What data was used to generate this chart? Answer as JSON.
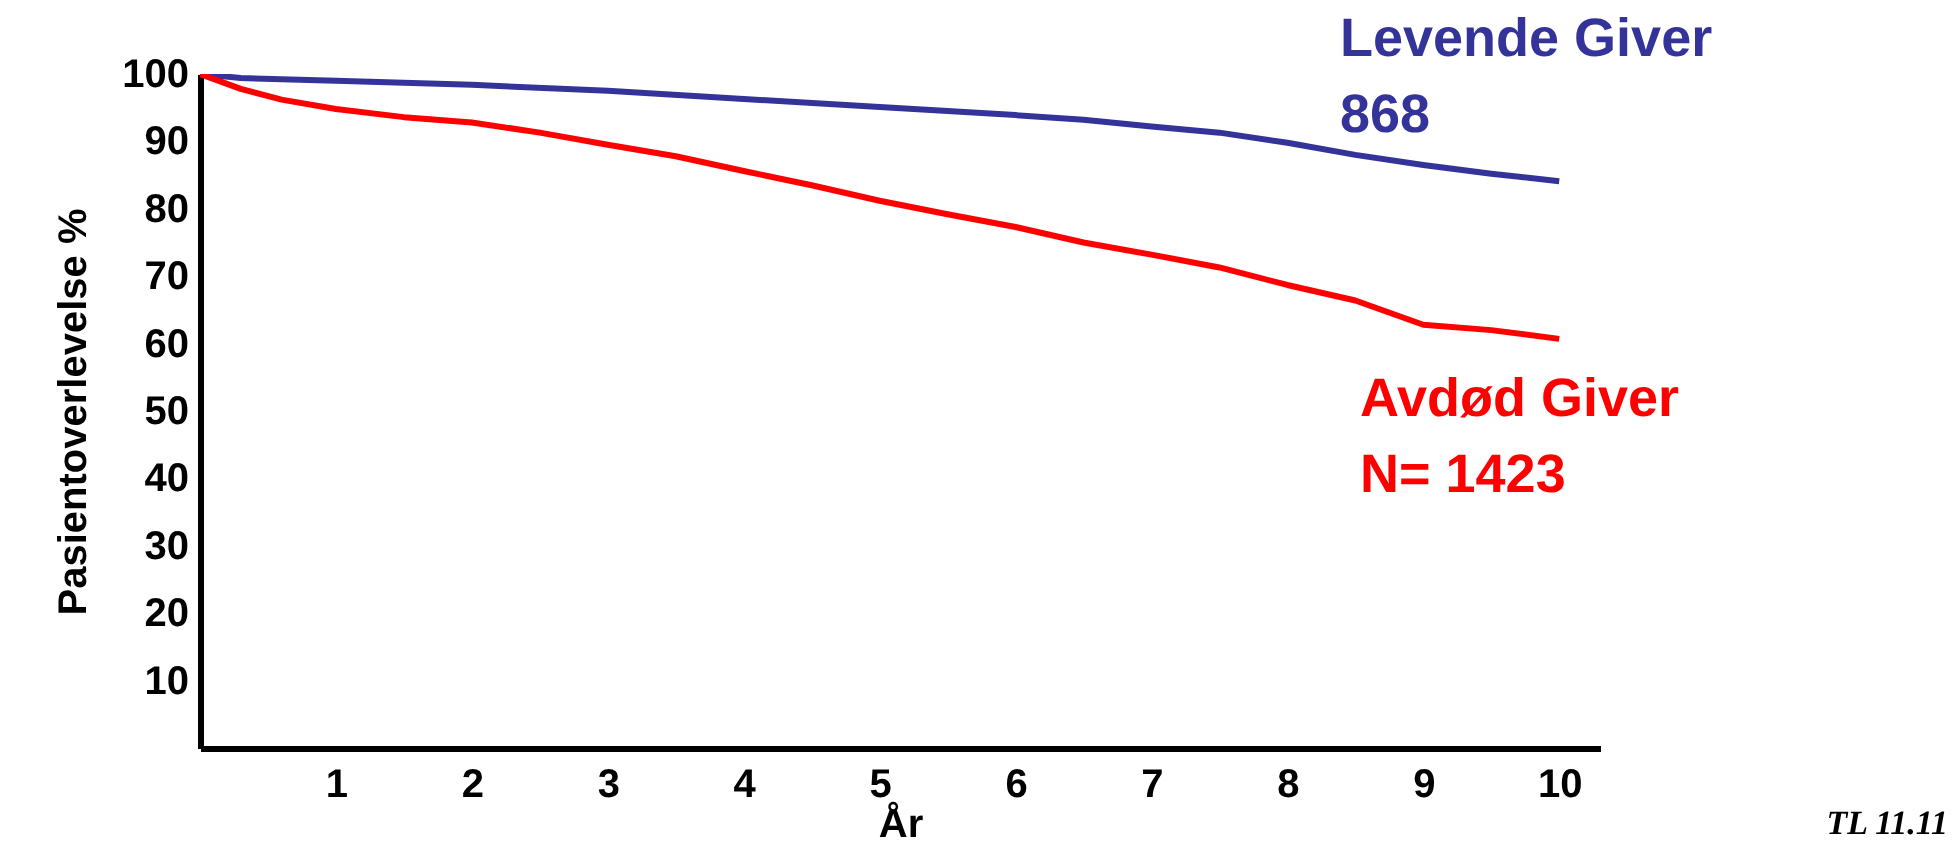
{
  "chart_data": {
    "type": "line",
    "xlabel": "År",
    "ylabel": "Pasientoverlevelse %",
    "xlim": [
      0,
      10.3
    ],
    "xticks": [
      1,
      2,
      3,
      4,
      5,
      6,
      7,
      8,
      9,
      10
    ],
    "ylim": [
      0,
      100
    ],
    "yticks": [
      10,
      20,
      30,
      40,
      50,
      60,
      70,
      80,
      90,
      100
    ],
    "grid": false,
    "legend": false,
    "marker": "none",
    "line_style": "solid",
    "annotations": [
      "TL 11.11"
    ],
    "series": [
      {
        "name": "Levende Giver\n868",
        "color": "#333399",
        "x": [
          0,
          0.3,
          1,
          2,
          3,
          4,
          5,
          6,
          6.5,
          7,
          7.5,
          8,
          8.5,
          9,
          9.5,
          10
        ],
        "values": [
          100,
          99.4,
          99,
          98.4,
          97.5,
          96.3,
          95.1,
          93.9,
          93.2,
          92.2,
          91.3,
          89.8,
          88,
          86.5,
          85.2,
          84.1
        ]
      },
      {
        "name": "Avdød Giver\nN=  1423",
        "color": "#ff0000",
        "x": [
          0,
          0.3,
          0.6,
          1,
          1.5,
          2,
          2.5,
          3,
          3.5,
          4,
          4.5,
          5,
          5.5,
          6,
          6.5,
          7,
          7.5,
          8,
          8.5,
          9,
          9.5,
          10
        ],
        "values": [
          100,
          97.8,
          96.2,
          94.8,
          93.6,
          92.8,
          91.3,
          89.5,
          87.8,
          85.6,
          83.5,
          81.2,
          79.2,
          77.3,
          75,
          73.2,
          71.3,
          68.7,
          66.4,
          62.8,
          62,
          60.7
        ]
      }
    ]
  }
}
